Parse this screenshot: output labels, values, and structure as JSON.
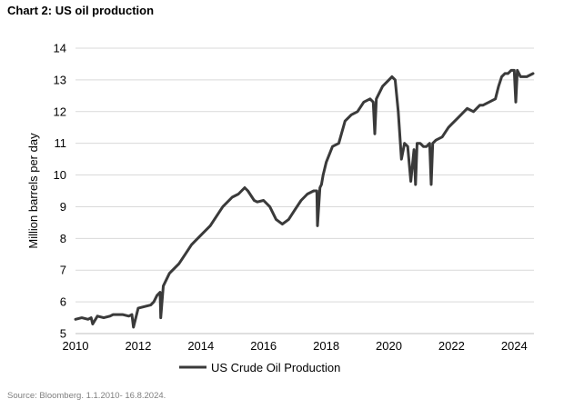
{
  "title": "Chart 2: US oil production",
  "source": "Source: Bloomberg. 1.1.2010-  16.8.2024.",
  "chart_data": {
    "type": "line",
    "title": "Chart 2: US oil production",
    "xlabel": "",
    "ylabel": "Million barrels per day",
    "xlim": [
      2010,
      2024.63
    ],
    "ylim": [
      5,
      14
    ],
    "xticks": [
      "2010",
      "2012",
      "2014",
      "2016",
      "2018",
      "2020",
      "2022",
      "2024"
    ],
    "yticks": [
      "5",
      "6",
      "7",
      "8",
      "9",
      "10",
      "11",
      "12",
      "13",
      "14"
    ],
    "grid": "horizontal",
    "legend": "bottom-center",
    "line_color": "#3a3a3a",
    "series": [
      {
        "name": "US Crude Oil Production",
        "x": [
          2010.0,
          2010.2,
          2010.4,
          2010.5,
          2010.55,
          2010.7,
          2010.9,
          2011.1,
          2011.2,
          2011.5,
          2011.7,
          2011.8,
          2011.85,
          2012.0,
          2012.2,
          2012.4,
          2012.5,
          2012.6,
          2012.7,
          2012.72,
          2012.8,
          2013.0,
          2013.3,
          2013.5,
          2013.7,
          2013.8,
          2014.0,
          2014.3,
          2014.5,
          2014.7,
          2015.0,
          2015.2,
          2015.4,
          2015.5,
          2015.7,
          2015.8,
          2016.0,
          2016.2,
          2016.4,
          2016.6,
          2016.8,
          2017.0,
          2017.2,
          2017.4,
          2017.6,
          2017.7,
          2017.72,
          2017.8,
          2017.85,
          2017.9,
          2018.0,
          2018.2,
          2018.4,
          2018.6,
          2018.8,
          2019.0,
          2019.2,
          2019.4,
          2019.5,
          2019.55,
          2019.6,
          2019.8,
          2020.0,
          2020.1,
          2020.2,
          2020.3,
          2020.4,
          2020.5,
          2020.6,
          2020.7,
          2020.8,
          2020.85,
          2020.9,
          2021.0,
          2021.1,
          2021.2,
          2021.3,
          2021.35,
          2021.4,
          2021.5,
          2021.7,
          2021.9,
          2022.0,
          2022.2,
          2022.5,
          2022.7,
          2022.9,
          2023.0,
          2023.2,
          2023.4,
          2023.5,
          2023.6,
          2023.7,
          2023.8,
          2023.9,
          2024.0,
          2024.05,
          2024.1,
          2024.2,
          2024.4,
          2024.6
        ],
        "values": [
          5.45,
          5.5,
          5.45,
          5.5,
          5.3,
          5.55,
          5.5,
          5.55,
          5.6,
          5.6,
          5.55,
          5.6,
          5.2,
          5.8,
          5.85,
          5.9,
          6.0,
          6.2,
          6.3,
          5.5,
          6.5,
          6.9,
          7.2,
          7.5,
          7.8,
          7.9,
          8.1,
          8.4,
          8.7,
          9.0,
          9.3,
          9.4,
          9.6,
          9.5,
          9.2,
          9.15,
          9.2,
          9.0,
          8.6,
          8.45,
          8.6,
          8.9,
          9.2,
          9.4,
          9.5,
          9.5,
          8.4,
          9.6,
          9.7,
          10.0,
          10.4,
          10.9,
          11.0,
          11.7,
          11.9,
          12.0,
          12.3,
          12.4,
          12.3,
          11.3,
          12.4,
          12.8,
          13.0,
          13.1,
          13.0,
          12.0,
          10.5,
          11.0,
          10.9,
          9.8,
          10.8,
          9.7,
          11.0,
          11.0,
          10.9,
          10.9,
          11.0,
          9.7,
          11.0,
          11.1,
          11.2,
          11.5,
          11.6,
          11.8,
          12.1,
          12.0,
          12.2,
          12.2,
          12.3,
          12.4,
          12.8,
          13.1,
          13.2,
          13.2,
          13.3,
          13.3,
          12.3,
          13.3,
          13.1,
          13.1,
          13.2
        ]
      }
    ]
  }
}
